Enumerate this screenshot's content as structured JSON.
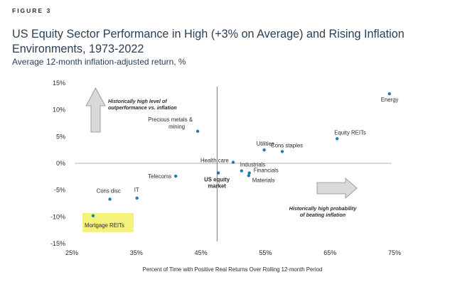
{
  "header": {
    "figure_label": "FIGURE 3",
    "title": "US Equity Sector Performance in High (+3% on Average) and Rising Inflation Environments, 1973-2022",
    "subtitle": "Average 12-month inflation-adjusted return, %"
  },
  "colors": {
    "point": "#1a7fb8",
    "us_market_label": "#1a7fb8",
    "highlight": "#f4f27a",
    "zero_line": "#9a9a9a",
    "vertical_line": "#555555",
    "arrow_fill": "#d9d9d9",
    "arrow_stroke": "#8c8c8c"
  },
  "icons": [
    "arrow-up-icon",
    "arrow-right-icon"
  ],
  "chart_data": {
    "type": "scatter",
    "title": "US Equity Sector Performance in High (+3% on Average) and Rising Inflation Environments, 1973-2022",
    "subtitle": "Average 12-month inflation-adjusted return, %",
    "xlabel": "Percent of Time with Positive Real Returns Over Rolling 12-month Period",
    "ylabel": "",
    "xlim": [
      25,
      75
    ],
    "ylim": [
      -15,
      15
    ],
    "x_ticks": [
      25,
      35,
      45,
      55,
      65,
      75
    ],
    "x_tick_labels": [
      "25%",
      "35%",
      "45%",
      "55%",
      "65%",
      "75%"
    ],
    "y_ticks": [
      15,
      10,
      5,
      0,
      -5,
      -10,
      -15
    ],
    "y_tick_labels": [
      "15%",
      "10%",
      "5%",
      "0%",
      "-5%",
      "-10%",
      "-15%"
    ],
    "reference_x": 47.5,
    "points": [
      {
        "label": "Energy",
        "x": 74.2,
        "y": 13.0
      },
      {
        "label": "Equity REITs",
        "x": 66.1,
        "y": 4.6
      },
      {
        "label": "Precious metals & mining",
        "x": 44.5,
        "y": 6.0
      },
      {
        "label": "Utilities",
        "x": 54.8,
        "y": 2.5
      },
      {
        "label": "Cons staples",
        "x": 57.6,
        "y": 2.2
      },
      {
        "label": "Health care",
        "x": 50.0,
        "y": 0.2
      },
      {
        "label": "Industrials",
        "x": 51.3,
        "y": -1.4
      },
      {
        "label": "Financials",
        "x": 52.5,
        "y": -1.8
      },
      {
        "label": "Materials",
        "x": 52.4,
        "y": -2.3
      },
      {
        "label": "US equity market",
        "x": 47.7,
        "y": -1.8
      },
      {
        "label": "Telecoms",
        "x": 41.1,
        "y": -2.4
      },
      {
        "label": "Cons disc",
        "x": 30.9,
        "y": -6.7
      },
      {
        "label": "IT",
        "x": 35.1,
        "y": -6.5
      },
      {
        "label": "Mortgage REITs",
        "x": 28.3,
        "y": -9.8
      }
    ],
    "annotations": {
      "top_left": [
        "Historically high level of",
        "outperformance vs. inflation"
      ],
      "bottom_right": [
        "Historically high probability",
        "of beating inflation"
      ]
    },
    "grid": false,
    "legend": "none"
  }
}
